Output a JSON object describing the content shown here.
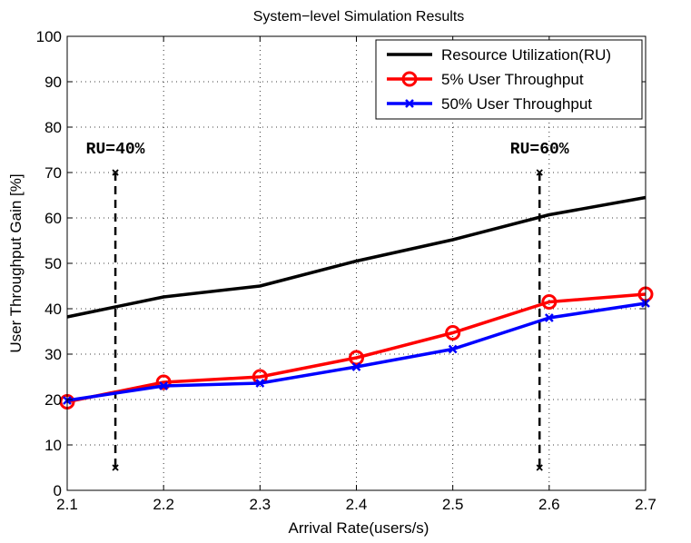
{
  "chart_data": {
    "type": "line",
    "title": "System−level Simulation Results",
    "xlabel": "Arrival Rate(users/s)",
    "ylabel": "User Throughput Gain [%]",
    "xlim": [
      2.1,
      2.7
    ],
    "ylim": [
      0,
      100
    ],
    "x_ticks": [
      2.1,
      2.2,
      2.3,
      2.4,
      2.5,
      2.6,
      2.7
    ],
    "x_tick_labels": [
      "2.1",
      "2.2",
      "2.3",
      "2.4",
      "2.5",
      "2.6",
      "2.7"
    ],
    "y_ticks": [
      0,
      10,
      20,
      30,
      40,
      50,
      60,
      70,
      80,
      90,
      100
    ],
    "y_tick_labels": [
      "0",
      "10",
      "20",
      "30",
      "40",
      "50",
      "60",
      "70",
      "80",
      "90",
      "100"
    ],
    "grid": true,
    "legend_position": "top-right",
    "x": [
      2.1,
      2.2,
      2.3,
      2.4,
      2.5,
      2.6,
      2.7
    ],
    "series": [
      {
        "name": "Resource Utilization(RU)",
        "color": "#000000",
        "marker": "none",
        "values": [
          38.2,
          42.6,
          45.0,
          50.5,
          55.2,
          60.7,
          64.5
        ]
      },
      {
        "name": "5% User Throughput",
        "color": "#ff0000",
        "marker": "circle",
        "values": [
          19.5,
          23.8,
          25.0,
          29.2,
          34.7,
          41.5,
          43.2
        ]
      },
      {
        "name": "50% User Throughput",
        "color": "#0000ff",
        "marker": "x",
        "values": [
          19.8,
          23.0,
          23.6,
          27.2,
          31.1,
          38.0,
          41.2
        ]
      }
    ],
    "annotations": [
      {
        "text": "RU=40%",
        "x": 2.15,
        "y_from": 5,
        "y_to": 70
      },
      {
        "text": "RU=60%",
        "x": 2.59,
        "y_from": 5,
        "y_to": 70
      }
    ]
  }
}
